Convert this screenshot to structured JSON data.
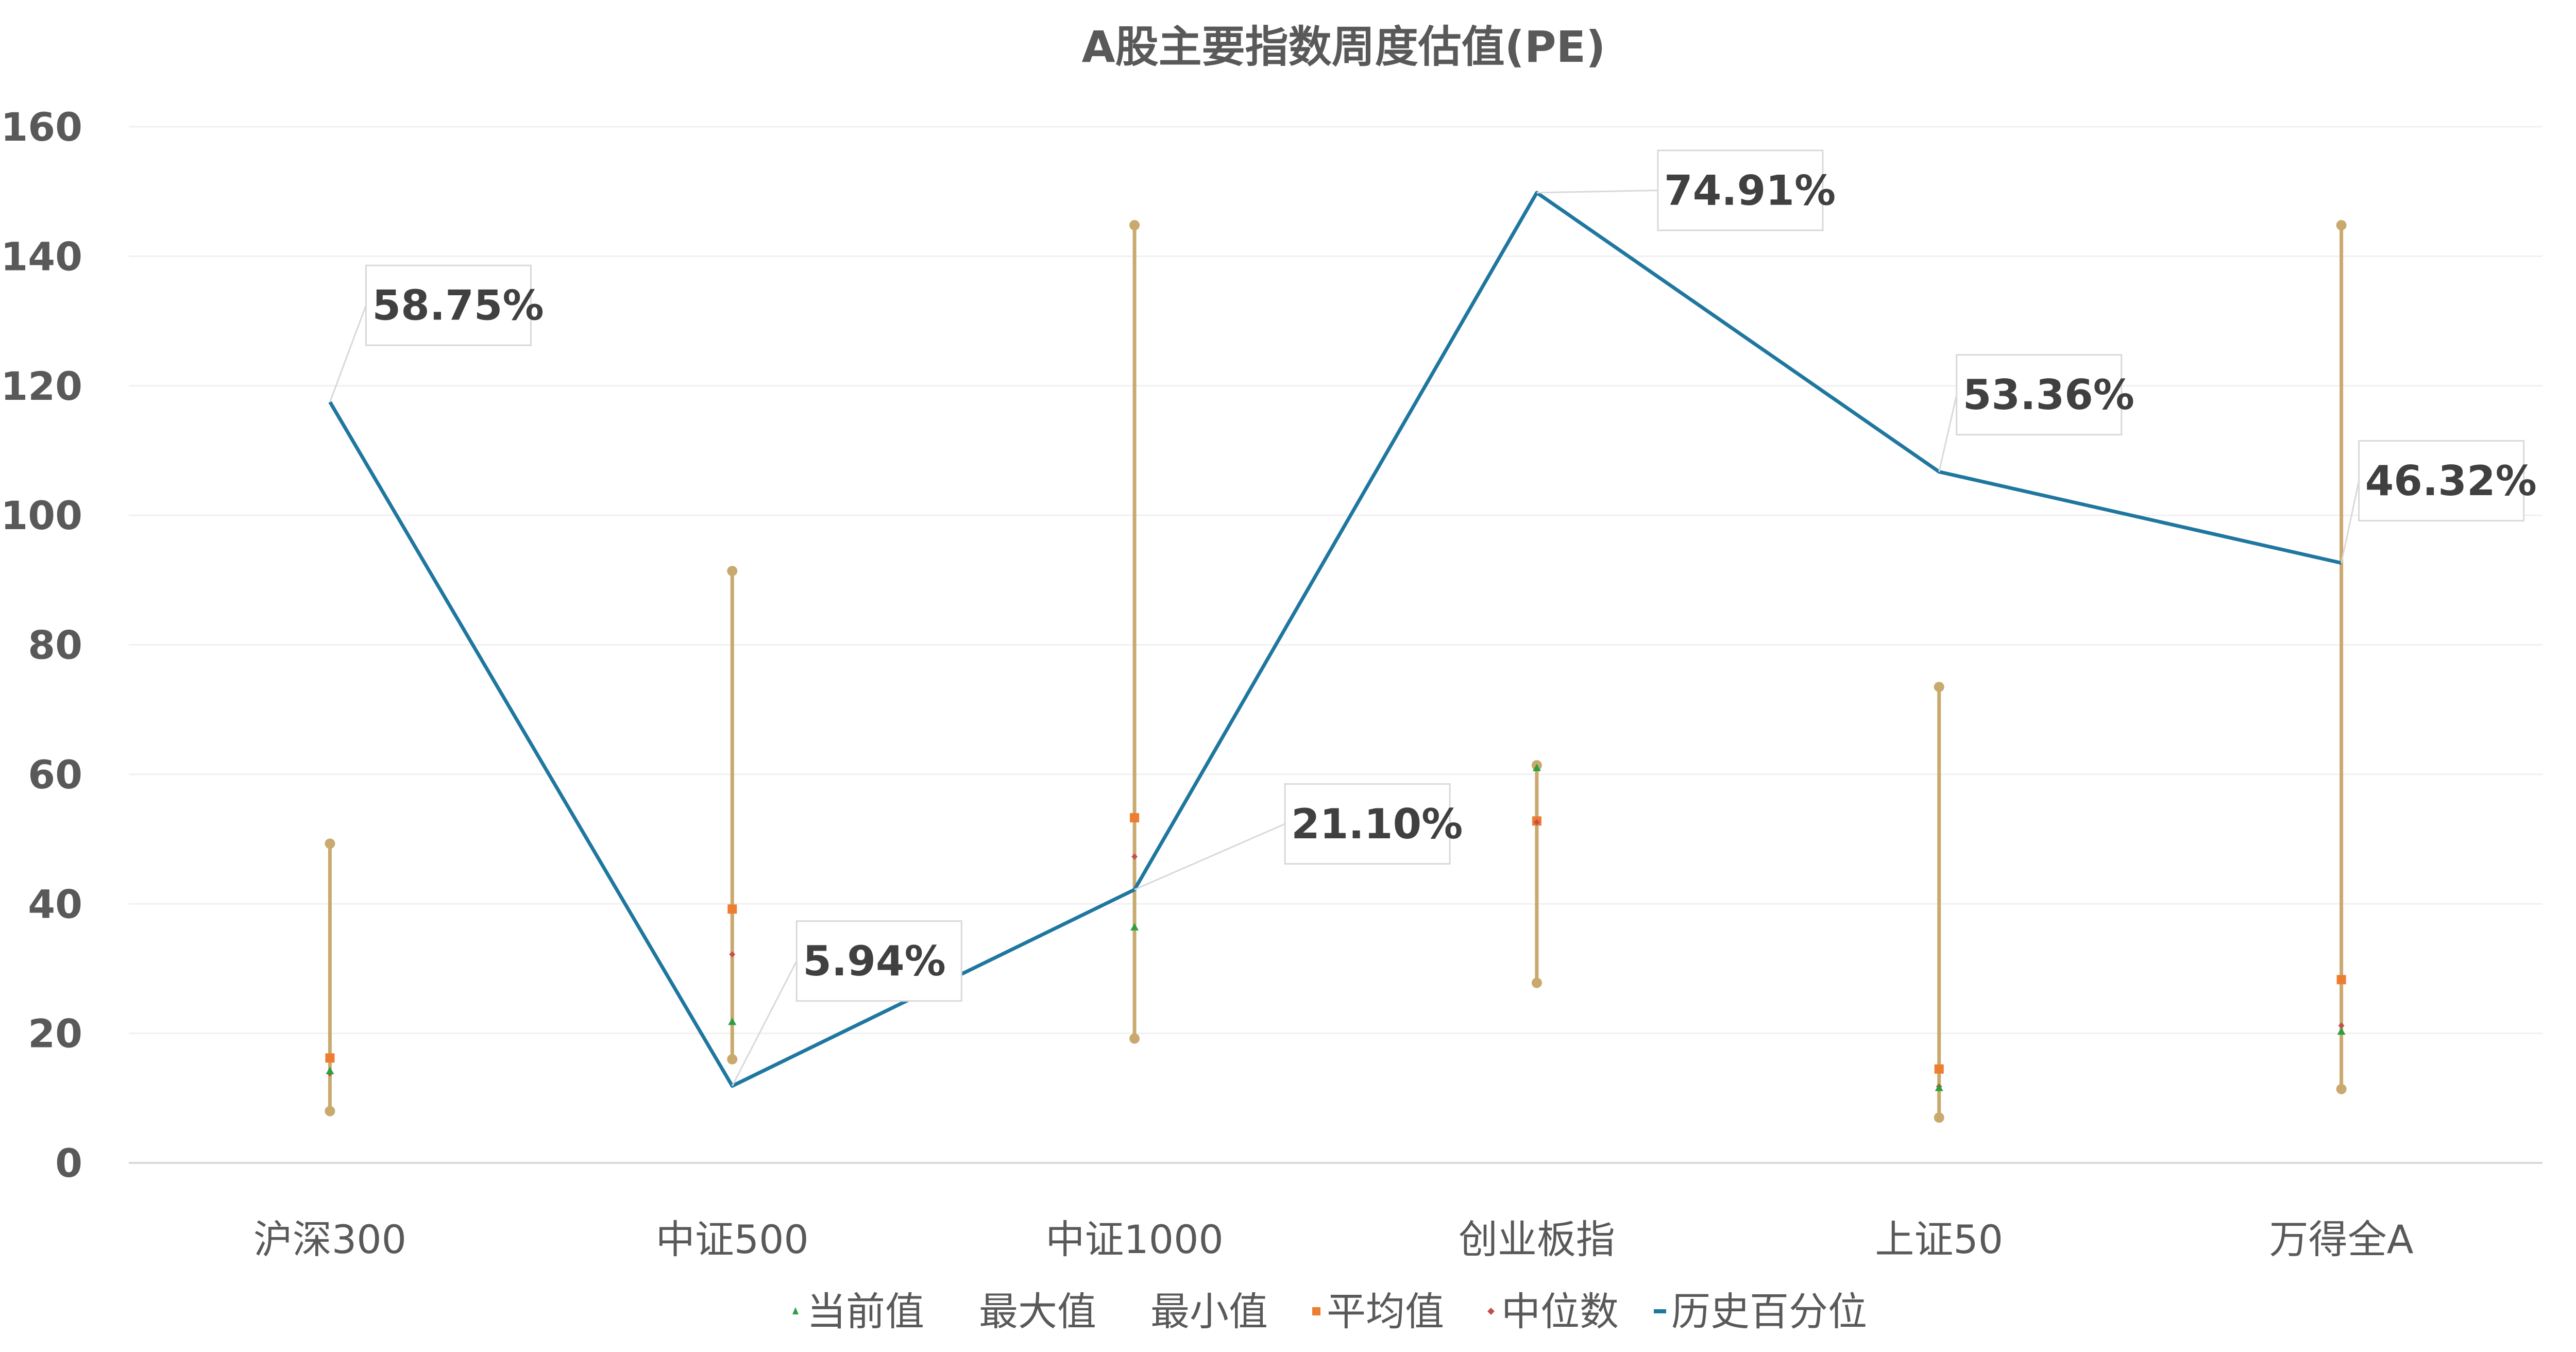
{
  "chart_data": {
    "type": "line",
    "title": "A股主要指数周度估值(PE)",
    "categories": [
      "沪深300",
      "中证500",
      "中证1000",
      "创业板指",
      "上证50",
      "万得全A"
    ],
    "y_left": {
      "ylim": [
        0,
        160
      ],
      "ticks": [
        "0",
        "20",
        "40",
        "60",
        "80",
        "100",
        "120",
        "140",
        "160"
      ]
    },
    "y_right": {
      "ylim": [
        0,
        80
      ],
      "ticks": [
        "0%",
        "10%",
        "20%",
        "30%",
        "40%",
        "50%",
        "60%",
        "70%",
        "80%"
      ]
    },
    "series": [
      {
        "name": "当前值",
        "axis": "left",
        "marker": "triangle",
        "color": "#2e9f3e",
        "values": [
          14.2,
          21.8,
          36.4,
          61.0,
          11.6,
          20.3
        ]
      },
      {
        "name": "最大值",
        "axis": "left",
        "marker": "circle",
        "color": "#c9a96e",
        "values": [
          49.3,
          91.4,
          144.8,
          61.4,
          73.5,
          144.8
        ]
      },
      {
        "name": "最小值",
        "axis": "left",
        "marker": "circle",
        "color": "#c9a96e",
        "values": [
          8.0,
          16.0,
          19.2,
          27.8,
          7.0,
          11.4
        ]
      },
      {
        "name": "平均值",
        "axis": "left",
        "marker": "square",
        "color": "#ed7d31",
        "values": [
          16.2,
          39.2,
          53.3,
          52.8,
          14.5,
          28.3
        ]
      },
      {
        "name": "中位数",
        "axis": "left",
        "marker": "diamond",
        "color": "#c0504d",
        "values": [
          13.8,
          32.2,
          47.3,
          52.6,
          11.8,
          21.2
        ]
      },
      {
        "name": "历史百分位",
        "axis": "right",
        "color": "#1f77a0",
        "values": [
          58.75,
          5.94,
          21.1,
          74.91,
          53.36,
          46.32
        ]
      }
    ],
    "data_labels": [
      "58.75%",
      "5.94%",
      "21.10%",
      "74.91%",
      "53.36%",
      "46.32%"
    ],
    "legend": {
      "position": "bottom",
      "items": [
        "当前值",
        "最大值",
        "最小值",
        "平均值",
        "中位数",
        "历史百分位"
      ]
    },
    "range_color": "#c9a96e",
    "grid": true
  }
}
